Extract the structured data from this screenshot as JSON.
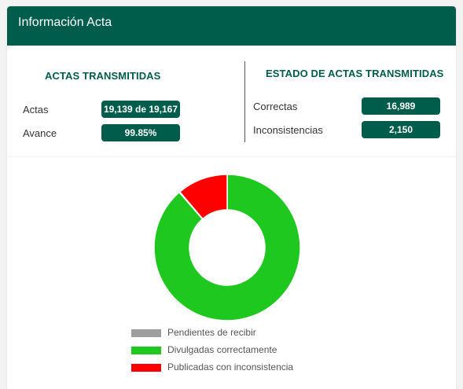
{
  "header": {
    "title": "Información Acta"
  },
  "transmitted": {
    "title": "ACTAS TRANSMITIDAS",
    "rows": [
      {
        "label": "Actas",
        "value": "19,139 de 19,167"
      },
      {
        "label": "Avance",
        "value": "99.85%"
      }
    ]
  },
  "status": {
    "title": "ESTADO DE ACTAS TRANSMITIDAS",
    "rows": [
      {
        "label": "Correctas",
        "value": "16,989"
      },
      {
        "label": "Inconsistencias",
        "value": "2,150"
      }
    ]
  },
  "chart_data": {
    "type": "pie",
    "style": "donut",
    "slices": [
      {
        "name": "Pendientes de recibir",
        "value": 28,
        "color": "#9e9e9e"
      },
      {
        "name": "Divulgadas correctamente",
        "value": 16989,
        "color": "#1ec81e"
      },
      {
        "name": "Publicadas con inconsistencia",
        "value": 2150,
        "color": "#ff0000"
      }
    ],
    "legend_position": "bottom"
  }
}
